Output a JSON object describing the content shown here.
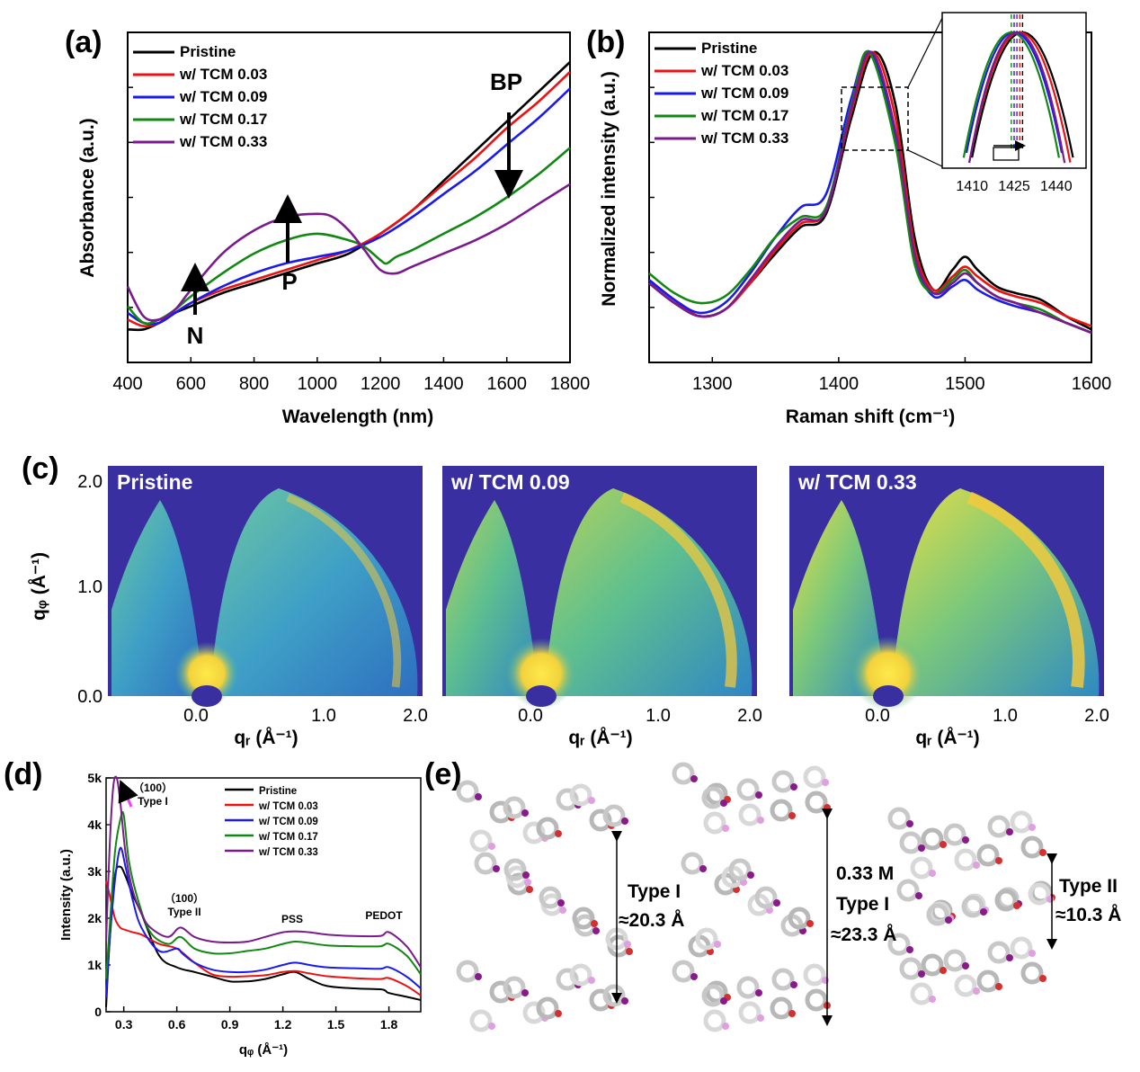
{
  "panels": {
    "a": "(a)",
    "b": "(b)",
    "c": "(c)",
    "d": "(d)",
    "e": "(e)"
  },
  "colors": {
    "Pristine": "#000000",
    "w/ TCM 0.03": "#ee1111",
    "w/ TCM 0.09": "#1a1aee",
    "w/ TCM 0.17": "#118811",
    "w/ TCM 0.33": "#7a1a8c",
    "giwaxs_bg": "#3a2fa0"
  },
  "chart_data": [
    {
      "id": "a",
      "type": "line",
      "xlabel": "Wavelength (nm)",
      "ylabel": "Absorbance (a.u.)",
      "xlim": [
        400,
        1800
      ],
      "xticks": [
        400,
        600,
        800,
        1000,
        1200,
        1400,
        1600,
        1800
      ],
      "ylim": [
        0,
        1
      ],
      "legend": "top-left",
      "annotations": [
        "N",
        "P",
        "BP"
      ],
      "series": [
        {
          "name": "Pristine",
          "x": [
            400,
            450,
            500,
            550,
            600,
            700,
            800,
            900,
            1000,
            1100,
            1200,
            1300,
            1400,
            1500,
            1600,
            1700,
            1800
          ],
          "y": [
            0.1,
            0.1,
            0.12,
            0.15,
            0.17,
            0.21,
            0.24,
            0.27,
            0.3,
            0.33,
            0.39,
            0.46,
            0.55,
            0.64,
            0.73,
            0.82,
            0.91
          ]
        },
        {
          "name": "w/ TCM 0.03",
          "x": [
            400,
            450,
            500,
            550,
            600,
            700,
            800,
            900,
            1000,
            1100,
            1200,
            1300,
            1400,
            1500,
            1600,
            1700,
            1800
          ],
          "y": [
            0.13,
            0.11,
            0.12,
            0.15,
            0.18,
            0.22,
            0.25,
            0.28,
            0.31,
            0.34,
            0.39,
            0.46,
            0.54,
            0.62,
            0.71,
            0.79,
            0.88
          ]
        },
        {
          "name": "w/ TCM 0.09",
          "x": [
            400,
            450,
            500,
            550,
            600,
            700,
            800,
            900,
            1000,
            1100,
            1200,
            1300,
            1400,
            1500,
            1600,
            1700,
            1800
          ],
          "y": [
            0.15,
            0.12,
            0.12,
            0.15,
            0.18,
            0.23,
            0.27,
            0.3,
            0.32,
            0.34,
            0.38,
            0.44,
            0.51,
            0.58,
            0.66,
            0.74,
            0.83
          ]
        },
        {
          "name": "w/ TCM 0.17",
          "x": [
            400,
            450,
            500,
            550,
            600,
            700,
            800,
            900,
            1000,
            1100,
            1150,
            1200,
            1220,
            1250,
            1300,
            1400,
            1500,
            1600,
            1700,
            1800
          ],
          "y": [
            0.17,
            0.12,
            0.13,
            0.16,
            0.2,
            0.27,
            0.33,
            0.37,
            0.39,
            0.37,
            0.35,
            0.31,
            0.3,
            0.32,
            0.34,
            0.39,
            0.44,
            0.5,
            0.57,
            0.65
          ]
        },
        {
          "name": "w/ TCM 0.33",
          "x": [
            400,
            450,
            500,
            550,
            600,
            700,
            800,
            900,
            1000,
            1050,
            1100,
            1150,
            1200,
            1250,
            1300,
            1400,
            1500,
            1600,
            1700,
            1800
          ],
          "y": [
            0.23,
            0.14,
            0.13,
            0.16,
            0.22,
            0.33,
            0.4,
            0.44,
            0.45,
            0.44,
            0.4,
            0.34,
            0.28,
            0.27,
            0.29,
            0.33,
            0.37,
            0.42,
            0.48,
            0.54
          ]
        }
      ]
    },
    {
      "id": "b",
      "type": "line",
      "xlabel": "Raman shift (cm⁻¹)",
      "ylabel": "Normalized intensity (a.u.)",
      "xlim": [
        1250,
        1600
      ],
      "xticks": [
        1300,
        1400,
        1500,
        1600
      ],
      "ylim": [
        0,
        1
      ],
      "legend": "top-left",
      "inset": {
        "xticks": [
          1410,
          1425,
          1440
        ],
        "xlim": [
          1400,
          1450
        ]
      },
      "series": [
        {
          "name": "Pristine",
          "x": [
            1250,
            1270,
            1290,
            1310,
            1330,
            1350,
            1370,
            1390,
            1410,
            1428,
            1445,
            1460,
            1475,
            1490,
            1500,
            1510,
            1525,
            1540,
            1560,
            1580,
            1600
          ],
          "y": [
            0.24,
            0.18,
            0.14,
            0.16,
            0.24,
            0.33,
            0.41,
            0.45,
            0.74,
            0.94,
            0.78,
            0.38,
            0.22,
            0.28,
            0.32,
            0.28,
            0.23,
            0.21,
            0.19,
            0.14,
            0.1
          ]
        },
        {
          "name": "w/ TCM 0.03",
          "x": [
            1250,
            1270,
            1290,
            1310,
            1330,
            1350,
            1370,
            1390,
            1410,
            1427,
            1445,
            1460,
            1475,
            1490,
            1500,
            1510,
            1525,
            1540,
            1560,
            1580,
            1600
          ],
          "y": [
            0.25,
            0.19,
            0.14,
            0.16,
            0.24,
            0.34,
            0.42,
            0.46,
            0.76,
            0.94,
            0.74,
            0.35,
            0.22,
            0.26,
            0.29,
            0.26,
            0.22,
            0.2,
            0.18,
            0.14,
            0.11
          ]
        },
        {
          "name": "w/ TCM 0.09",
          "x": [
            1250,
            1270,
            1290,
            1310,
            1330,
            1350,
            1370,
            1390,
            1410,
            1425,
            1445,
            1460,
            1475,
            1490,
            1500,
            1510,
            1525,
            1540,
            1560,
            1580,
            1600
          ],
          "y": [
            0.25,
            0.19,
            0.15,
            0.18,
            0.27,
            0.38,
            0.47,
            0.51,
            0.8,
            0.94,
            0.68,
            0.32,
            0.2,
            0.23,
            0.25,
            0.22,
            0.19,
            0.17,
            0.15,
            0.12,
            0.09
          ]
        },
        {
          "name": "w/ TCM 0.17",
          "x": [
            1250,
            1270,
            1290,
            1310,
            1330,
            1350,
            1370,
            1390,
            1410,
            1424,
            1445,
            1460,
            1475,
            1490,
            1500,
            1510,
            1525,
            1540,
            1560,
            1580,
            1600
          ],
          "y": [
            0.27,
            0.21,
            0.18,
            0.2,
            0.28,
            0.38,
            0.44,
            0.47,
            0.78,
            0.94,
            0.66,
            0.3,
            0.21,
            0.25,
            0.28,
            0.24,
            0.2,
            0.18,
            0.16,
            0.12,
            0.09
          ]
        },
        {
          "name": "w/ TCM 0.33",
          "x": [
            1250,
            1270,
            1290,
            1310,
            1330,
            1350,
            1370,
            1390,
            1410,
            1426,
            1445,
            1460,
            1475,
            1490,
            1500,
            1510,
            1525,
            1540,
            1560,
            1580,
            1600
          ],
          "y": [
            0.24,
            0.18,
            0.14,
            0.16,
            0.25,
            0.35,
            0.43,
            0.46,
            0.77,
            0.94,
            0.7,
            0.33,
            0.21,
            0.24,
            0.27,
            0.24,
            0.2,
            0.18,
            0.15,
            0.12,
            0.09
          ]
        }
      ]
    },
    {
      "id": "c",
      "type": "heatmap",
      "xlabel": "qᵣ (Å⁻¹)",
      "ylabel": "qᵩ (Å⁻¹)",
      "xticks": [
        "0.0",
        "1.0",
        "2.0"
      ],
      "yticks": [
        "0.0",
        "1.0",
        "2.0"
      ],
      "xlim": [
        -0.9,
        2.0
      ],
      "ylim": [
        0,
        2.1
      ],
      "maps": [
        {
          "label": "Pristine",
          "intensity": 0.35
        },
        {
          "label": "w/ TCM 0.09",
          "intensity": 0.75
        },
        {
          "label": "w/ TCM 0.33",
          "intensity": 0.95
        }
      ]
    },
    {
      "id": "d",
      "type": "line",
      "xlabel": "qᵩ (Å⁻¹)",
      "ylabel": "Intensity (a.u.)",
      "xlim": [
        0.2,
        1.98
      ],
      "xticks": [
        0.3,
        0.6,
        0.9,
        1.2,
        1.5,
        1.8
      ],
      "ylim": [
        0,
        5000
      ],
      "yticks": [
        "0",
        "1k",
        "2k",
        "3k",
        "4k",
        "5k"
      ],
      "legend": "top-right",
      "annotations": [
        "（100）",
        "Type I",
        "（100）",
        "Type II",
        "PSS",
        "PEDOT"
      ],
      "series": [
        {
          "name": "Pristine",
          "x": [
            0.2,
            0.22,
            0.25,
            0.28,
            0.31,
            0.35,
            0.4,
            0.5,
            0.6,
            0.7,
            0.8,
            0.9,
            1.0,
            1.1,
            1.2,
            1.27,
            1.35,
            1.45,
            1.6,
            1.75,
            1.78,
            1.8,
            1.9,
            1.98
          ],
          "y": [
            100,
            1500,
            2900,
            3100,
            2900,
            2500,
            2100,
            1200,
            950,
            850,
            750,
            650,
            650,
            700,
            800,
            850,
            700,
            550,
            500,
            480,
            450,
            400,
            320,
            250
          ]
        },
        {
          "name": "w/ TCM 0.03",
          "x": [
            0.2,
            0.22,
            0.25,
            0.28,
            0.31,
            0.35,
            0.4,
            0.5,
            0.6,
            0.7,
            0.8,
            0.9,
            1.0,
            1.1,
            1.2,
            1.27,
            1.35,
            1.45,
            1.6,
            1.75,
            1.8,
            1.9,
            1.98
          ],
          "y": [
            2800,
            2500,
            2000,
            1800,
            1750,
            1700,
            1650,
            1450,
            1350,
            1050,
            800,
            750,
            760,
            780,
            850,
            870,
            820,
            760,
            720,
            700,
            720,
            550,
            350
          ]
        },
        {
          "name": "w/ TCM 0.09",
          "x": [
            0.2,
            0.22,
            0.25,
            0.28,
            0.31,
            0.35,
            0.4,
            0.5,
            0.6,
            0.63,
            0.7,
            0.8,
            0.9,
            1.0,
            1.1,
            1.2,
            1.27,
            1.35,
            1.45,
            1.6,
            1.75,
            1.8,
            1.9,
            1.98
          ],
          "y": [
            300,
            1500,
            2800,
            3500,
            3100,
            2400,
            1800,
            1300,
            1350,
            1250,
            1050,
            900,
            850,
            850,
            900,
            1000,
            1050,
            1000,
            950,
            930,
            920,
            950,
            750,
            500
          ]
        },
        {
          "name": "w/ TCM 0.17",
          "x": [
            0.2,
            0.22,
            0.25,
            0.28,
            0.3,
            0.33,
            0.38,
            0.45,
            0.55,
            0.62,
            0.7,
            0.8,
            0.9,
            1.0,
            1.1,
            1.2,
            1.27,
            1.35,
            1.45,
            1.6,
            1.75,
            1.8,
            1.9,
            1.98
          ],
          "y": [
            700,
            1800,
            3400,
            4100,
            4200,
            3200,
            2400,
            1700,
            1450,
            1600,
            1350,
            1250,
            1250,
            1300,
            1350,
            1450,
            1500,
            1470,
            1420,
            1400,
            1400,
            1450,
            1200,
            800
          ]
        },
        {
          "name": "w/ TCM 0.33",
          "x": [
            0.2,
            0.22,
            0.24,
            0.26,
            0.28,
            0.31,
            0.35,
            0.4,
            0.45,
            0.55,
            0.62,
            0.7,
            0.8,
            0.9,
            1.0,
            1.1,
            1.2,
            1.27,
            1.35,
            1.45,
            1.6,
            1.75,
            1.8,
            1.9,
            1.98
          ],
          "y": [
            1500,
            3500,
            4800,
            5000,
            4500,
            3400,
            2600,
            2100,
            1800,
            1600,
            1800,
            1600,
            1500,
            1480,
            1500,
            1600,
            1700,
            1720,
            1700,
            1650,
            1620,
            1620,
            1700,
            1400,
            950
          ]
        }
      ]
    },
    {
      "id": "e",
      "type": "diagram",
      "labels": [
        {
          "title": "Type I",
          "value": "≈20.3 Å"
        },
        {
          "prefix": "0.33 M",
          "title": "Type I",
          "value": "≈23.3 Å"
        },
        {
          "title": "Type II",
          "value": "≈10.3 Å"
        }
      ]
    }
  ]
}
